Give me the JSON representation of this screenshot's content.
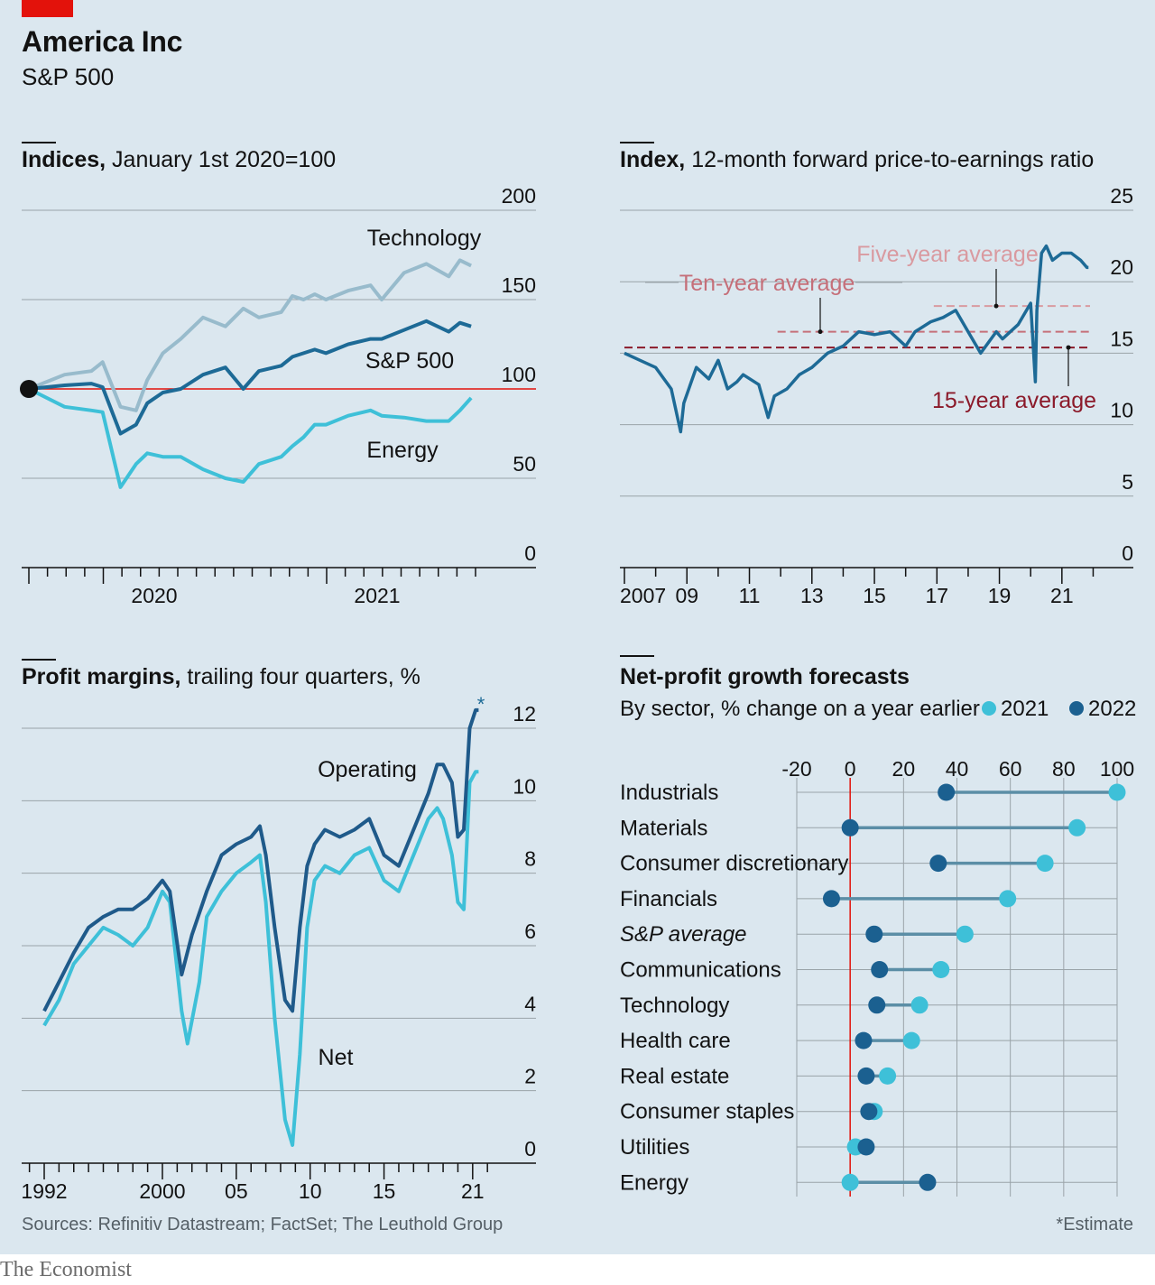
{
  "header": {
    "title": "America Inc",
    "subtitle": "S&P 500"
  },
  "footer": {
    "source": "Sources: Refinitiv Datastream; FactSet; The Leuthold Group",
    "note": "*Estimate",
    "brand": "The Economist"
  },
  "colors": {
    "panel_bg": "#dbe7ef",
    "grid": "#9aa3a8",
    "brand_red": "#e3120b",
    "sp500": "#1d6a96",
    "technology": "#98bbcc",
    "energy": "#3ec0d8",
    "operating": "#1f5a8a",
    "net": "#3ec0d8",
    "avg10": "#c56f79",
    "avg5": "#d99aa0",
    "avg15": "#8b1a2a",
    "dot2021": "#3ec0d8",
    "dot2022": "#1b6090",
    "connector": "#5b8ea6"
  },
  "chart_data": [
    {
      "type": "line",
      "title": "Indices,",
      "subtitle": "January 1st 2020=100",
      "ylim": [
        0,
        200
      ],
      "yticks": [
        "0",
        "50",
        "100",
        "150",
        "200"
      ],
      "xticks": [
        "2020",
        "2021"
      ],
      "x_range": [
        2019.67,
        2021.67
      ],
      "series": [
        {
          "name": "Technology",
          "x": [
            2019.67,
            2019.83,
            2019.95,
            2020.0,
            2020.08,
            2020.15,
            2020.2,
            2020.27,
            2020.35,
            2020.45,
            2020.55,
            2020.63,
            2020.7,
            2020.8,
            2020.85,
            2020.9,
            2020.95,
            2021.0,
            2021.1,
            2021.2,
            2021.25,
            2021.35,
            2021.45,
            2021.55,
            2021.6,
            2021.65
          ],
          "values": [
            100,
            108,
            110,
            115,
            90,
            88,
            105,
            120,
            128,
            140,
            135,
            145,
            140,
            143,
            152,
            150,
            153,
            150,
            155,
            158,
            150,
            165,
            170,
            163,
            172,
            169
          ]
        },
        {
          "name": "S&P 500",
          "x": [
            2019.67,
            2019.83,
            2019.95,
            2020.0,
            2020.08,
            2020.15,
            2020.2,
            2020.27,
            2020.35,
            2020.45,
            2020.55,
            2020.63,
            2020.7,
            2020.8,
            2020.85,
            2020.9,
            2020.95,
            2021.0,
            2021.1,
            2021.2,
            2021.25,
            2021.35,
            2021.45,
            2021.55,
            2021.6,
            2021.65
          ],
          "values": [
            100,
            102,
            103,
            101,
            75,
            80,
            92,
            98,
            100,
            108,
            112,
            100,
            110,
            113,
            118,
            120,
            122,
            120,
            125,
            128,
            128,
            133,
            138,
            132,
            137,
            135
          ]
        },
        {
          "name": "Energy",
          "x": [
            2019.67,
            2019.83,
            2019.95,
            2020.0,
            2020.08,
            2020.15,
            2020.2,
            2020.27,
            2020.35,
            2020.45,
            2020.55,
            2020.63,
            2020.7,
            2020.8,
            2020.85,
            2020.9,
            2020.95,
            2021.0,
            2021.1,
            2021.2,
            2021.25,
            2021.35,
            2021.45,
            2021.55,
            2021.6,
            2021.65
          ],
          "values": [
            100,
            90,
            88,
            87,
            45,
            58,
            64,
            62,
            62,
            55,
            50,
            48,
            58,
            62,
            68,
            73,
            80,
            80,
            85,
            88,
            85,
            84,
            82,
            82,
            88,
            95
          ]
        }
      ],
      "annotations": [
        "Technology",
        "S&P 500",
        "Energy"
      ]
    },
    {
      "type": "line",
      "title": "Index,",
      "subtitle": "12-month forward price-to-earnings ratio",
      "ylim": [
        0,
        25
      ],
      "yticks": [
        "0",
        "5",
        "10",
        "15",
        "20",
        "25"
      ],
      "xticks": [
        "2007",
        "09",
        "11",
        "13",
        "15",
        "17",
        "19",
        "21"
      ],
      "x_range": [
        2007,
        2021.9
      ],
      "series": [
        {
          "name": "12-month forward P/E",
          "x": [
            2007.0,
            2007.5,
            2008.0,
            2008.5,
            2008.8,
            2008.9,
            2009.3,
            2009.7,
            2010.0,
            2010.3,
            2010.6,
            2010.8,
            2011.3,
            2011.6,
            2011.8,
            2012.2,
            2012.6,
            2013.0,
            2013.5,
            2014.0,
            2014.5,
            2015.0,
            2015.5,
            2016.0,
            2016.3,
            2016.8,
            2017.2,
            2017.6,
            2018.0,
            2018.4,
            2018.9,
            2019.1,
            2019.6,
            2020.0,
            2020.15,
            2020.2,
            2020.35,
            2020.5,
            2020.7,
            2021.0,
            2021.3,
            2021.6,
            2021.8,
            2021.85
          ],
          "values": [
            15.0,
            14.5,
            14.0,
            12.5,
            9.5,
            11.5,
            14.0,
            13.2,
            14.5,
            12.5,
            13.0,
            13.5,
            12.8,
            10.5,
            12.0,
            12.5,
            13.5,
            14.0,
            15.0,
            15.5,
            16.5,
            16.3,
            16.5,
            15.5,
            16.5,
            17.2,
            17.5,
            18.0,
            16.5,
            15.0,
            16.5,
            16.0,
            17.0,
            18.5,
            13.0,
            18.0,
            22.0,
            22.5,
            21.5,
            22.0,
            22.0,
            21.5,
            21.0,
            21.0
          ]
        }
      ],
      "reference_lines": [
        {
          "name": "Ten-year average",
          "value": 16.5
        },
        {
          "name": "Five-year average",
          "value": 18.3
        },
        {
          "name": "15-year average",
          "value": 15.4
        }
      ]
    },
    {
      "type": "line",
      "title": "Profit margins,",
      "subtitle": "trailing four quarters, %",
      "ylim": [
        0,
        12
      ],
      "yticks": [
        "0",
        "2",
        "4",
        "6",
        "8",
        "10",
        "12"
      ],
      "xticks": [
        "1992",
        "2000",
        "05",
        "10",
        "15",
        "21"
      ],
      "x_range": [
        1992,
        2021.5
      ],
      "series": [
        {
          "name": "Operating",
          "x": [
            1992,
            1993,
            1994,
            1995,
            1996,
            1997,
            1998,
            1999,
            2000,
            2000.5,
            2001.3,
            2002,
            2003,
            2004,
            2005,
            2006,
            2006.6,
            2007,
            2007.6,
            2008.3,
            2008.8,
            2009.3,
            2009.8,
            2010.3,
            2011,
            2012,
            2013,
            2014,
            2015,
            2016,
            2017,
            2018,
            2018.6,
            2019,
            2019.6,
            2020,
            2020.4,
            2020.8,
            2021.2,
            2021.4
          ],
          "values": [
            4.2,
            5.0,
            5.8,
            6.5,
            6.8,
            7.0,
            7.0,
            7.3,
            7.8,
            7.5,
            5.2,
            6.3,
            7.5,
            8.5,
            8.8,
            9.0,
            9.3,
            8.5,
            6.5,
            4.5,
            4.2,
            6.5,
            8.2,
            8.8,
            9.2,
            9.0,
            9.2,
            9.5,
            8.5,
            8.2,
            9.2,
            10.2,
            11.0,
            11.0,
            10.5,
            9.0,
            9.2,
            12.0,
            12.5,
            12.5
          ]
        },
        {
          "name": "Net",
          "x": [
            1992,
            1993,
            1994,
            1995,
            1996,
            1997,
            1998,
            1999,
            2000,
            2000.5,
            2001.3,
            2001.7,
            2002.5,
            2003,
            2004,
            2005,
            2006,
            2006.6,
            2007,
            2007.6,
            2008.3,
            2008.8,
            2009.3,
            2009.8,
            2010.3,
            2011,
            2012,
            2013,
            2014,
            2015,
            2016,
            2017,
            2018,
            2018.6,
            2019,
            2019.6,
            2020,
            2020.4,
            2020.8,
            2021.2,
            2021.4
          ],
          "values": [
            3.8,
            4.5,
            5.5,
            6.0,
            6.5,
            6.3,
            6.0,
            6.5,
            7.5,
            7.2,
            4.2,
            3.3,
            5.0,
            6.8,
            7.5,
            8.0,
            8.3,
            8.5,
            7.2,
            4.0,
            1.2,
            0.5,
            3.0,
            6.5,
            7.8,
            8.2,
            8.0,
            8.5,
            8.7,
            7.8,
            7.5,
            8.5,
            9.5,
            9.8,
            9.5,
            8.5,
            7.2,
            7.0,
            10.5,
            10.8,
            10.8
          ]
        }
      ],
      "annotations": [
        "Operating",
        "Net",
        "*"
      ]
    },
    {
      "type": "scatter",
      "title": "Net-profit growth forecasts",
      "subtitle": "By sector, % change on a year earlier",
      "xlim": [
        -20,
        100
      ],
      "xticks": [
        "-20",
        "0",
        "20",
        "40",
        "60",
        "80",
        "100"
      ],
      "categories": [
        "Industrials",
        "Materials",
        "Consumer discretionary",
        "Financials",
        "S&P average",
        "Communications",
        "Technology",
        "Health care",
        "Real estate",
        "Consumer staples",
        "Utilities",
        "Energy"
      ],
      "series": [
        {
          "name": "2021",
          "values": [
            100,
            85,
            73,
            59,
            43,
            34,
            26,
            23,
            14,
            9,
            2,
            0
          ]
        },
        {
          "name": "2022",
          "values": [
            36,
            0,
            33,
            -7,
            9,
            11,
            10,
            5,
            6,
            7,
            6,
            29
          ]
        }
      ]
    }
  ]
}
